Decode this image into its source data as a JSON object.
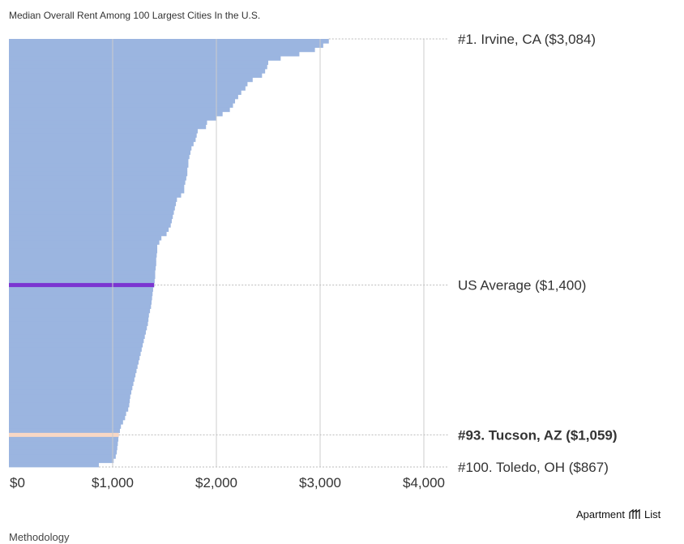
{
  "chart_data": {
    "type": "bar",
    "orientation": "horizontal",
    "title": "Median Overall Rent Among 100 Largest Cities In the U.S.",
    "xlabel": "",
    "ylabel": "",
    "xlim": [
      0,
      4000
    ],
    "ticks": [
      0,
      1000,
      2000,
      3000,
      4000
    ],
    "tick_labels": [
      "$0",
      "$1,000",
      "$2,000",
      "$3,000",
      "$4,000"
    ],
    "grid": true,
    "values": [
      3084,
      3030,
      2950,
      2800,
      2620,
      2500,
      2490,
      2470,
      2440,
      2350,
      2300,
      2280,
      2240,
      2210,
      2180,
      2160,
      2130,
      2060,
      2000,
      1910,
      1900,
      1820,
      1810,
      1800,
      1780,
      1760,
      1750,
      1740,
      1730,
      1730,
      1720,
      1720,
      1710,
      1700,
      1690,
      1690,
      1660,
      1620,
      1610,
      1600,
      1590,
      1580,
      1570,
      1560,
      1540,
      1520,
      1470,
      1450,
      1430,
      1430,
      1425,
      1420,
      1420,
      1415,
      1410,
      1410,
      1405,
      1400,
      1390,
      1385,
      1380,
      1375,
      1370,
      1360,
      1350,
      1345,
      1340,
      1330,
      1320,
      1310,
      1300,
      1290,
      1280,
      1270,
      1260,
      1250,
      1240,
      1230,
      1220,
      1210,
      1200,
      1190,
      1180,
      1170,
      1165,
      1160,
      1150,
      1130,
      1120,
      1100,
      1080,
      1070,
      1059,
      1055,
      1050,
      1045,
      1040,
      1030,
      1010,
      867
    ],
    "highlights": [
      {
        "label": "#1. Irvine, CA ($3,084)",
        "value": 3084,
        "rank": 1,
        "color": "#9bb5e0",
        "bold": false
      },
      {
        "label": "US Average ($1,400)",
        "value": 1400,
        "rank": 58,
        "color": "#7b35d1",
        "bold": false
      },
      {
        "label": "#93. Tucson, AZ ($1,059)",
        "value": 1059,
        "rank": 93,
        "color": "#f8d7c4",
        "bold": true
      },
      {
        "label": "#100. Toledo, OH ($867)",
        "value": 867,
        "rank": 100,
        "color": "#9bb5e0",
        "bold": false
      }
    ]
  },
  "colors": {
    "bar": "#9bb5e0",
    "average_line": "#7b35d1",
    "highlight_line": "#f8d7c4",
    "grid": "#cccccc"
  },
  "footer": {
    "methodology_label": "Methodology",
    "brand_name": "Apartment",
    "brand_suffix": "List",
    "brand_icon": "apartment-list-logo-icon"
  }
}
